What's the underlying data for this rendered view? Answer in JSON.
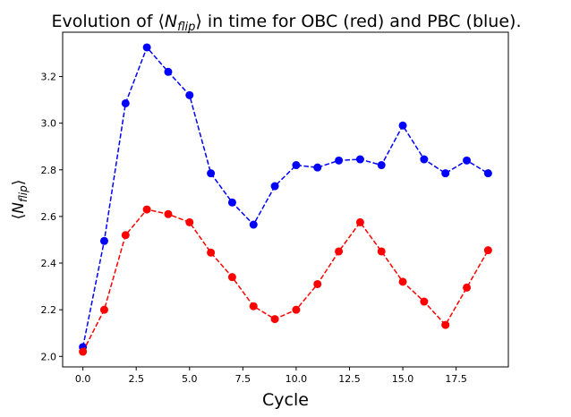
{
  "chart_data": {
    "type": "line",
    "title": [
      "Evolution of ⟨",
      "N",
      "flip",
      "⟩ in time for OBC (red) and PBC (blue)."
    ],
    "xlabel": "Cycle",
    "ylabel": [
      "⟨",
      "N",
      "flip",
      "⟩"
    ],
    "x": [
      0,
      1,
      2,
      3,
      4,
      5,
      6,
      7,
      8,
      9,
      10,
      11,
      12,
      13,
      14,
      15,
      16,
      17,
      18,
      19
    ],
    "series": [
      {
        "color": "#0000ff",
        "values": [
          2.04,
          2.495,
          3.085,
          3.325,
          3.22,
          3.12,
          2.785,
          2.66,
          2.565,
          2.73,
          2.82,
          2.81,
          2.84,
          2.845,
          2.82,
          2.99,
          2.845,
          2.785,
          2.84,
          2.785
        ]
      },
      {
        "color": "#ff0000",
        "values": [
          2.02,
          2.2,
          2.52,
          2.63,
          2.61,
          2.575,
          2.445,
          2.34,
          2.215,
          2.16,
          2.2,
          2.31,
          2.45,
          2.575,
          2.45,
          2.32,
          2.235,
          2.135,
          2.295,
          2.455
        ]
      }
    ],
    "xlim": [
      -0.95,
      19.95
    ],
    "ylim": [
      1.955,
      3.39
    ],
    "xticks": [
      {
        "value": 0,
        "label": "0.0"
      },
      2.5,
      {
        "value": 5,
        "label": "5.0"
      },
      7.5,
      {
        "value": 10,
        "label": "10.0"
      },
      12.5,
      {
        "value": 15,
        "label": "15.0"
      },
      17.5
    ],
    "yticks": [
      {
        "value": 2,
        "label": "2.0"
      },
      2.2,
      2.4,
      2.6,
      2.8,
      {
        "value": 3,
        "label": "3.0"
      },
      3.2
    ],
    "linestyle": "dashed",
    "marker": "circle"
  }
}
